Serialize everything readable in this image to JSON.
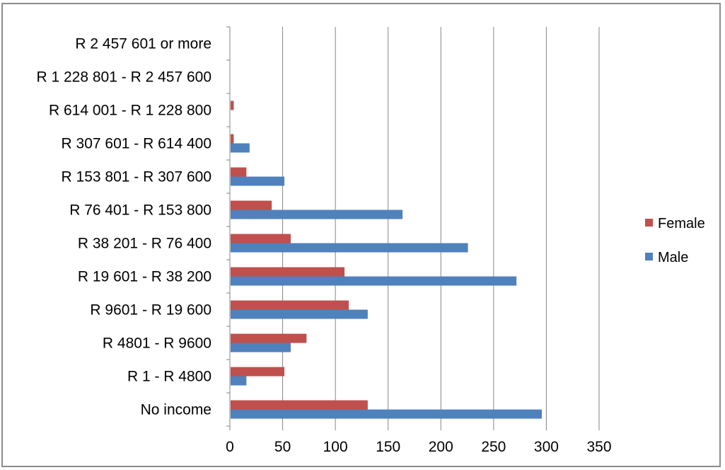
{
  "chart_data": {
    "type": "bar",
    "orientation": "horizontal",
    "title": "",
    "xlabel": "",
    "ylabel": "",
    "xlim": [
      0,
      350
    ],
    "x_ticks": [
      0,
      50,
      100,
      150,
      200,
      250,
      300,
      350
    ],
    "grid": true,
    "legend_position": "right",
    "categories": [
      "No income",
      "R 1 - R 4800",
      "R 4801 - R 9600",
      "R 9601 - R 19 600",
      "R 19 601 - R 38 200",
      "R 38 201 - R 76 400",
      "R 76 401 - R 153 800",
      "R 153 801 - R 307 600",
      "R 307 601 - R 614 400",
      "R 614 001 - R 1 228 800",
      "R 1 228 801 - R 2 457 600",
      "R 2 457 601 or more"
    ],
    "series": [
      {
        "name": "Female",
        "color": "#c0504d",
        "values": [
          130,
          51,
          72,
          112,
          108,
          57,
          39,
          15,
          3,
          3,
          0,
          0
        ]
      },
      {
        "name": "Male",
        "color": "#4f81bd",
        "values": [
          295,
          15,
          57,
          130,
          271,
          225,
          163,
          51,
          18,
          0,
          0,
          0
        ]
      }
    ],
    "legend_order": [
      "Female",
      "Male"
    ]
  }
}
